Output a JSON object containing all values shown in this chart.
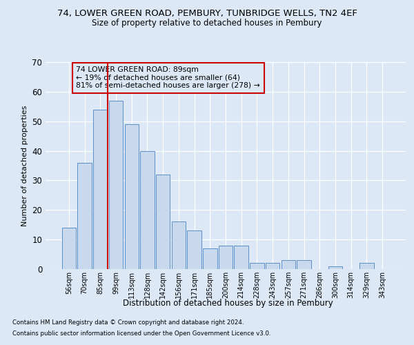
{
  "title_line1": "74, LOWER GREEN ROAD, PEMBURY, TUNBRIDGE WELLS, TN2 4EF",
  "title_line2": "Size of property relative to detached houses in Pembury",
  "xlabel": "Distribution of detached houses by size in Pembury",
  "ylabel": "Number of detached properties",
  "bar_labels": [
    "56sqm",
    "70sqm",
    "85sqm",
    "99sqm",
    "113sqm",
    "128sqm",
    "142sqm",
    "156sqm",
    "171sqm",
    "185sqm",
    "200sqm",
    "214sqm",
    "228sqm",
    "243sqm",
    "257sqm",
    "271sqm",
    "286sqm",
    "300sqm",
    "314sqm",
    "329sqm",
    "343sqm"
  ],
  "bar_values": [
    14,
    36,
    54,
    57,
    49,
    40,
    32,
    16,
    13,
    7,
    8,
    8,
    2,
    2,
    3,
    3,
    0,
    1,
    0,
    2,
    0
  ],
  "bar_color": "#c9d9ed",
  "bar_edge_color": "#5b8fc9",
  "vline_index": 2,
  "vline_color": "#cc0000",
  "annotation_box_text": "74 LOWER GREEN ROAD: 89sqm\n← 19% of detached houses are smaller (64)\n81% of semi-detached houses are larger (278) →",
  "annotation_box_color": "#cc0000",
  "background_color": "#dce8f5",
  "ylim": [
    0,
    70
  ],
  "yticks": [
    0,
    10,
    20,
    30,
    40,
    50,
    60,
    70
  ],
  "footnote1": "Contains HM Land Registry data © Crown copyright and database right 2024.",
  "footnote2": "Contains public sector information licensed under the Open Government Licence v3.0."
}
